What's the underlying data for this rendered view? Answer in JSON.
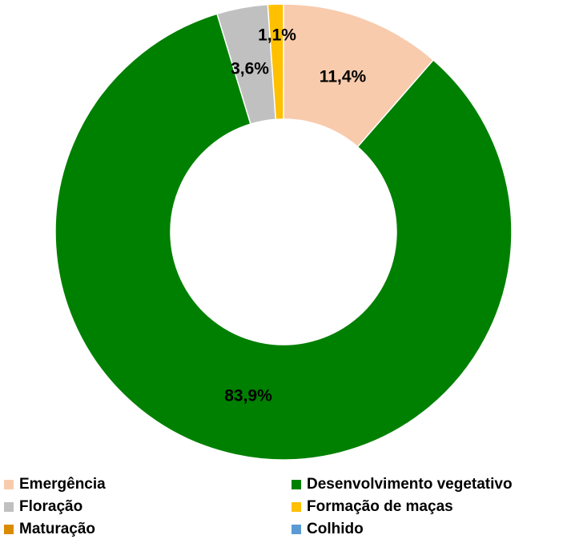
{
  "chart_data": {
    "type": "pie",
    "variant": "doughnut",
    "title": "",
    "categories": [
      "Emergência",
      "Desenvolvimento vegetativo",
      "Floração",
      "Formação de maças",
      "Maturação",
      "Colhido"
    ],
    "values": [
      11.4,
      83.9,
      3.6,
      1.1,
      0,
      0
    ],
    "value_labels": [
      "11,4%",
      "83,9%",
      "3,6%",
      "1,1%",
      "",
      ""
    ],
    "colors": [
      "#F8CBAD",
      "#008000",
      "#C0C0C0",
      "#FFC000",
      "#D98C00",
      "#5B9BD5"
    ],
    "legend_position": "bottom",
    "legend": [
      {
        "label": "Emergência",
        "color": "#F8CBAD"
      },
      {
        "label": "Desenvolvimento vegetativo",
        "color": "#008000"
      },
      {
        "label": "Floração",
        "color": "#C0C0C0"
      },
      {
        "label": "Formação de maças",
        "color": "#FFC000"
      },
      {
        "label": "Maturação",
        "color": "#D98C00"
      },
      {
        "label": "Colhido",
        "color": "#5B9BD5"
      }
    ]
  }
}
